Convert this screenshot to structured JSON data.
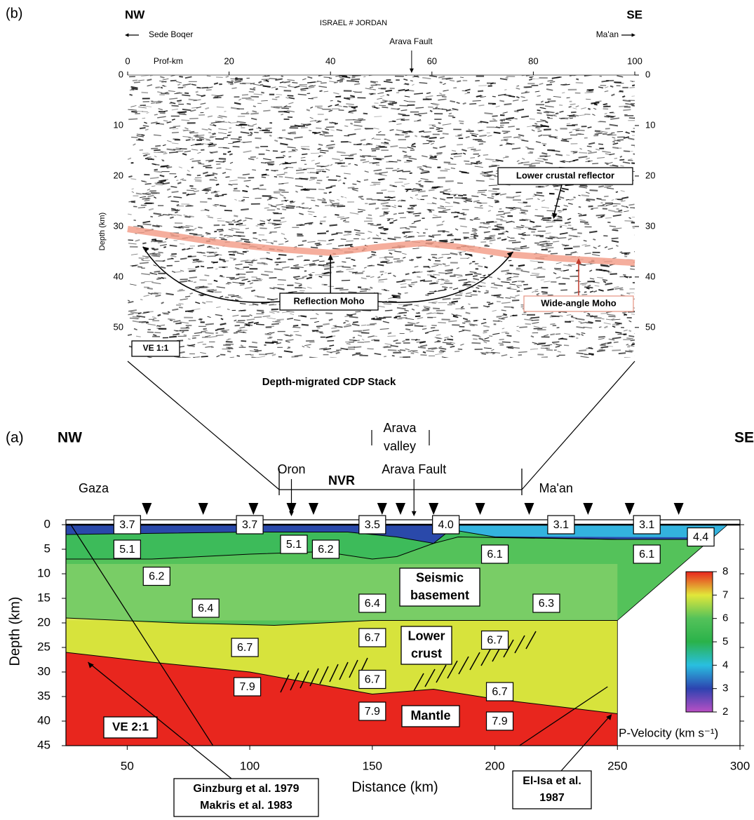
{
  "chart_data": [
    {
      "type": "seismic-section",
      "panel": "(b)",
      "title": "Depth-migrated CDP Stack",
      "left_direction": "NW",
      "right_direction": "SE",
      "left_place": "Sede Boqer",
      "right_place": "Ma'an",
      "border": "ISRAEL # JORDAN",
      "fault": "Arava Fault",
      "fault_x": 56,
      "x_label": "Prof-km",
      "y_label": "Depth (km)",
      "xlim": [
        0,
        100
      ],
      "xticks": [
        0,
        20,
        40,
        60,
        80,
        100
      ],
      "ylim": [
        0,
        56
      ],
      "yticks": [
        0,
        10,
        20,
        30,
        40,
        50
      ],
      "ve": "VE 1:1",
      "series": [
        {
          "name": "Wide-angle Moho",
          "color": "#f3a08c",
          "x": [
            0,
            10,
            20,
            30,
            40,
            50,
            58,
            65,
            75,
            85,
            100
          ],
          "values": [
            30.5,
            32,
            33.5,
            34.5,
            35.2,
            34,
            33.3,
            34,
            35.5,
            36.3,
            37.2
          ]
        }
      ],
      "callouts": [
        {
          "text": "Reflection Moho",
          "x": [
            3,
            40,
            76
          ],
          "values": [
            34,
            35.5,
            35
          ]
        },
        {
          "text": "Lower crustal reflector",
          "x": [
            84
          ],
          "values": [
            28.5
          ]
        }
      ]
    },
    {
      "type": "velocity-model",
      "panel": "(a)",
      "left_direction": "NW",
      "right_direction": "SE",
      "x_label": "Distance (km)",
      "y_label": "Depth (km)",
      "xlim": [
        25,
        300
      ],
      "xticks": [
        50,
        100,
        150,
        200,
        250,
        300
      ],
      "ylim": [
        -1,
        45
      ],
      "yticks": [
        0,
        5,
        10,
        15,
        20,
        25,
        30,
        35,
        40,
        45
      ],
      "ve": "VE 2:1",
      "places": [
        {
          "text": "Gaza",
          "x": 33
        },
        {
          "text": "Oron",
          "x": 117
        },
        {
          "text": "Arava Fault",
          "x": 167
        },
        {
          "text": "Ma'an",
          "x": 214
        }
      ],
      "nvr": {
        "text": "NVR",
        "x": [
          112,
          211
        ]
      },
      "valley": [
        "Arava",
        "valley"
      ],
      "stations": [
        58,
        81,
        101.5,
        117,
        126,
        154,
        161.5,
        175,
        194,
        214,
        238,
        255,
        275
      ],
      "interfaces": [
        {
          "x": [
            25,
            300
          ],
          "values": [
            0,
            0
          ]
        },
        {
          "x": [
            25,
            100,
            140,
            160,
            175,
            182,
            200,
            250,
            300
          ],
          "values": [
            2,
            1.5,
            1.5,
            2.5,
            3.8,
            1,
            2.5,
            3,
            3
          ]
        },
        {
          "x": [
            25,
            60,
            100,
            130,
            150,
            160,
            175,
            185,
            250,
            300
          ],
          "values": [
            7,
            7,
            6,
            5.5,
            7,
            6.5,
            3.8,
            2.5,
            3,
            3
          ]
        },
        {
          "x": [
            25,
            70,
            110,
            150,
            200,
            300
          ],
          "values": [
            19,
            20,
            20.5,
            19.5,
            19.5,
            19.5
          ]
        },
        {
          "x": [
            25,
            60,
            100,
            150,
            175,
            200,
            250,
            300
          ],
          "values": [
            26,
            28,
            30,
            34.5,
            33.5,
            35.5,
            38.5,
            38.5
          ]
        },
        {
          "x": [
            25,
            300
          ],
          "values": [
            45,
            45
          ]
        }
      ],
      "colors": [
        "#2a49aa",
        "#3dbb5a",
        "#54c25a",
        "#d7e33c",
        "#e8261e"
      ],
      "model_outline": {
        "x": [
          25,
          295,
          250,
          250,
          25
        ],
        "values": [
          0,
          0,
          19.5,
          45,
          45
        ]
      },
      "velocities": {
        "x": [
          50,
          100,
          150,
          180,
          227,
          262,
          284,
          50,
          118,
          200,
          262,
          62,
          131,
          82,
          150,
          221,
          98,
          150,
          200,
          150,
          202,
          99,
          150,
          202
        ],
        "y": [
          0,
          0,
          0,
          0,
          0,
          0,
          2.5,
          5,
          4,
          6,
          6,
          10.5,
          5,
          17,
          16,
          16,
          25,
          23,
          23.5,
          31.5,
          34,
          33,
          38,
          40
        ],
        "values": [
          3.7,
          3.7,
          3.5,
          4.0,
          3.1,
          3.1,
          4.4,
          5.1,
          5.1,
          6.1,
          6.1,
          6.2,
          6.2,
          6.4,
          6.4,
          6.3,
          6.7,
          6.7,
          6.7,
          6.7,
          6.7,
          7.9,
          7.9,
          7.9
        ],
        "value_labels": [
          "3.7",
          "3.7",
          "3.5",
          "4.0",
          "3.1",
          "3.1",
          "4.4",
          "5.1",
          "5.1",
          "6.1",
          "6.1",
          "6.2",
          "6.2",
          "6.4",
          "6.4",
          "6.3",
          "6.7",
          "6.7",
          "6.7",
          "6.7",
          "6.7",
          "7.9",
          "7.9",
          "7.9"
        ]
      },
      "units": [
        [
          "Seismic",
          "basement"
        ],
        [
          "Lower",
          "crust"
        ],
        [
          "Mantle"
        ]
      ],
      "colorbar": {
        "label": "P-Velocity (km s⁻¹)",
        "ylim": [
          2,
          8
        ],
        "yticks": [
          2,
          3,
          4,
          5,
          6,
          7,
          8
        ],
        "colors": [
          "#b94fc4",
          "#2d43b0",
          "#29bfe0",
          "#2ab24a",
          "#54c25a",
          "#e2e73a",
          "#e8261e"
        ]
      },
      "references": [
        [
          "Ginzburg et al. 1979",
          "Makris et al. 1983"
        ],
        [
          "El-Isa et al.",
          "1987"
        ]
      ]
    }
  ]
}
